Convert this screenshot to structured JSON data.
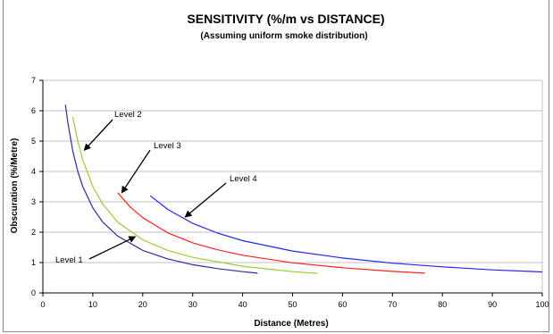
{
  "chart_data": {
    "type": "line",
    "title": "SENSITIVITY (%/m vs DISTANCE)",
    "subtitle": "(Assuming uniform smoke distribution)",
    "xlabel": "Distance (Metres)",
    "ylabel": "Obscuration (%/Metre)",
    "xlim": [
      0,
      100
    ],
    "ylim": [
      0,
      7
    ],
    "xticks": [
      0,
      10,
      20,
      30,
      40,
      50,
      60,
      70,
      80,
      90,
      100
    ],
    "yticks": [
      0,
      1,
      2,
      3,
      4,
      5,
      6,
      7
    ],
    "grid": "horizontal",
    "legend": "none",
    "series": [
      {
        "name": "Level 1",
        "color": "#2b2b9a",
        "x": [
          4.5,
          5,
          6,
          7,
          8,
          10,
          12,
          15,
          20,
          25,
          30,
          35,
          40,
          43
        ],
        "y": [
          6.2,
          5.6,
          4.67,
          4.0,
          3.5,
          2.8,
          2.33,
          1.87,
          1.4,
          1.12,
          0.93,
          0.8,
          0.7,
          0.65
        ]
      },
      {
        "name": "Level 2",
        "color": "#99cc33",
        "x": [
          6,
          7,
          8,
          10,
          12,
          15,
          20,
          25,
          30,
          40,
          50,
          55
        ],
        "y": [
          5.8,
          5.0,
          4.38,
          3.5,
          2.92,
          2.33,
          1.75,
          1.4,
          1.17,
          0.88,
          0.7,
          0.64
        ]
      },
      {
        "name": "Level 3",
        "color": "#ff2020",
        "x": [
          15,
          17.5,
          20,
          25,
          30,
          35,
          40,
          50,
          60,
          70,
          76.5
        ],
        "y": [
          3.3,
          2.83,
          2.48,
          1.98,
          1.65,
          1.42,
          1.24,
          0.99,
          0.83,
          0.71,
          0.65
        ]
      },
      {
        "name": "Level 4",
        "color": "#2323ff",
        "x": [
          21.5,
          25,
          30,
          35,
          40,
          50,
          60,
          70,
          80,
          90,
          100
        ],
        "y": [
          3.2,
          2.75,
          2.29,
          1.97,
          1.72,
          1.38,
          1.15,
          0.98,
          0.86,
          0.76,
          0.69
        ]
      }
    ],
    "annotations": [
      {
        "text": "Level 1",
        "arrow_to": [
          18.5,
          1.85
        ]
      },
      {
        "text": "Level 2",
        "arrow_to": [
          8.3,
          4.7
        ]
      },
      {
        "text": "Level 3",
        "arrow_to": [
          15.8,
          3.3
        ]
      },
      {
        "text": "Level 4",
        "arrow_to": [
          28.5,
          2.5
        ]
      }
    ]
  }
}
